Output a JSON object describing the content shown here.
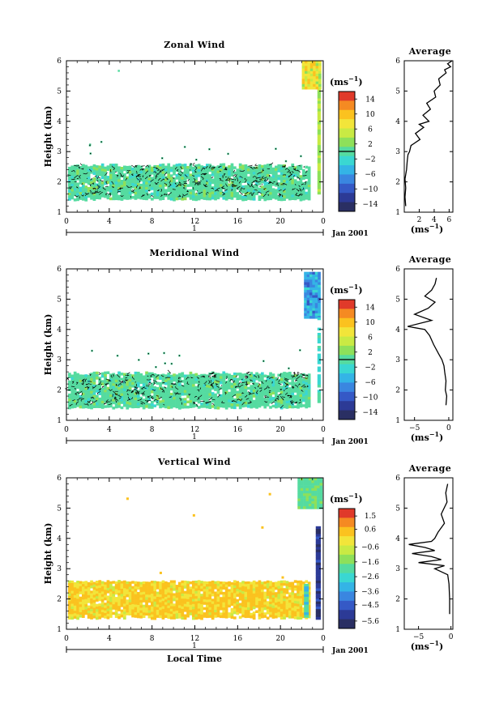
{
  "chart_data": [
    {
      "type": "heatmap",
      "title": "Zonal Wind",
      "ylabel": "Height (km)",
      "x_ticks": [
        "0",
        "4",
        "8",
        "12",
        "16",
        "20",
        "0"
      ],
      "y_ticks": [
        "1",
        "2",
        "3",
        "4",
        "5",
        "6"
      ],
      "xlim": [
        0,
        24
      ],
      "ylim": [
        1,
        6
      ],
      "day_label": "1",
      "date_label": "Jan 2001",
      "colorbar": {
        "unit": "(ms",
        "unit_sup": "−1",
        "ticks": [
          "14",
          "10",
          "6",
          "2",
          "−2",
          "−6",
          "−10",
          "−14"
        ],
        "range": [
          -16,
          16
        ]
      },
      "average_profile": {
        "title": "Average",
        "x_ticks": [
          "2",
          "4",
          "6"
        ],
        "xlim": [
          0,
          6.5
        ],
        "unit": "(ms",
        "unit_sup": "−1)",
        "height_km": [
          1.2,
          1.5,
          1.8,
          2.1,
          2.4,
          2.7,
          2.9,
          3.0,
          3.2,
          3.4,
          3.6,
          3.8,
          3.9,
          4.0,
          4.2,
          4.4,
          4.6,
          4.8,
          5.0,
          5.2,
          5.4,
          5.6,
          5.7,
          5.8,
          5.9,
          6.0
        ],
        "value_ms": [
          0.2,
          0.1,
          0.2,
          0.1,
          0.3,
          0.4,
          0.5,
          0.7,
          0.9,
          2.1,
          1.5,
          2.6,
          2.0,
          3.3,
          2.5,
          3.5,
          3.0,
          4.2,
          4.0,
          4.8,
          4.6,
          5.6,
          5.4,
          6.2,
          5.8,
          6.4
        ]
      }
    },
    {
      "type": "heatmap",
      "title": "Meridional Wind",
      "ylabel": "Height (km)",
      "x_ticks": [
        "0",
        "4",
        "8",
        "12",
        "16",
        "20",
        "0"
      ],
      "y_ticks": [
        "1",
        "2",
        "3",
        "4",
        "5",
        "6"
      ],
      "xlim": [
        0,
        24
      ],
      "ylim": [
        1,
        6
      ],
      "day_label": "1",
      "date_label": "Jan 2001",
      "colorbar": {
        "unit": "(ms",
        "unit_sup": "−1",
        "ticks": [
          "14",
          "10",
          "6",
          "2",
          "−2",
          "−6",
          "−10",
          "−14"
        ],
        "range": [
          -16,
          16
        ]
      },
      "average_profile": {
        "title": "Average",
        "x_ticks": [
          "−5",
          "0"
        ],
        "xlim": [
          -6.5,
          0.6
        ],
        "unit": "(ms",
        "unit_sup": "−1)",
        "height_km": [
          1.5,
          1.8,
          2.0,
          2.3,
          2.6,
          2.8,
          3.0,
          3.2,
          3.5,
          3.8,
          4.0,
          4.1,
          4.3,
          4.5,
          4.7,
          4.9,
          5.1,
          5.3,
          5.5,
          5.7
        ],
        "value_ms": [
          -0.4,
          -0.3,
          -0.5,
          -0.4,
          -0.6,
          -0.7,
          -1.0,
          -1.5,
          -2.2,
          -2.8,
          -3.5,
          -6.0,
          -2.5,
          -5.0,
          -3.0,
          -2.0,
          -3.5,
          -2.5,
          -2.0,
          -1.8
        ]
      }
    },
    {
      "type": "heatmap",
      "title": "Vertical Wind",
      "ylabel": "Height (km)",
      "xlabel": "Local Time",
      "x_ticks": [
        "0",
        "4",
        "8",
        "12",
        "16",
        "20",
        "0"
      ],
      "y_ticks": [
        "1",
        "2",
        "3",
        "4",
        "5",
        "6"
      ],
      "xlim": [
        0,
        24
      ],
      "ylim": [
        1,
        6
      ],
      "day_label": "1",
      "date_label": "Jan 2001",
      "colorbar": {
        "unit": "(ms",
        "unit_sup": "−1",
        "ticks": [
          "1.5",
          "0.6",
          "−0.6",
          "−1.6",
          "−2.6",
          "−3.6",
          "−4.5",
          "−5.6"
        ],
        "range": [
          -6.1,
          2.0
        ]
      },
      "average_profile": {
        "title": "Average",
        "x_ticks": [
          "−5",
          "0"
        ],
        "xlim": [
          -7.2,
          0.3
        ],
        "unit": "(ms",
        "unit_sup": "−1)",
        "height_km": [
          1.5,
          2.0,
          2.5,
          2.8,
          2.9,
          3.0,
          3.1,
          3.2,
          3.3,
          3.4,
          3.5,
          3.6,
          3.7,
          3.8,
          3.9,
          4.0,
          4.2,
          4.5,
          4.8,
          5.2,
          5.5,
          5.8
        ],
        "value_ms": [
          -0.2,
          -0.2,
          -0.3,
          -0.5,
          -1.5,
          -2.5,
          -1.0,
          -5.0,
          -1.5,
          -3.0,
          -6.0,
          -2.5,
          -4.0,
          -6.5,
          -3.0,
          -2.5,
          -2.0,
          -1.0,
          -1.5,
          -0.6,
          -0.8,
          -0.5
        ]
      }
    }
  ]
}
